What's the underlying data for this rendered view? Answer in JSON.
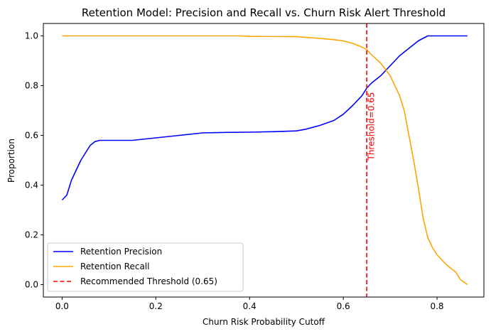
{
  "chart_data": {
    "type": "line",
    "title": "Retention Model: Precision and Recall vs. Churn Risk Alert Threshold",
    "xlabel": "Churn Risk Probability Cutoff",
    "ylabel": "Proportion",
    "xlim": [
      -0.04,
      0.9
    ],
    "ylim": [
      -0.05,
      1.05
    ],
    "xticks": [
      "0.0",
      "0.2",
      "0.4",
      "0.6",
      "0.8"
    ],
    "xtick_values": [
      0.0,
      0.2,
      0.4,
      0.6,
      0.8
    ],
    "yticks": [
      "0.0",
      "0.2",
      "0.4",
      "0.6",
      "0.8",
      "1.0"
    ],
    "ytick_values": [
      0.0,
      0.2,
      0.4,
      0.6,
      0.8,
      1.0
    ],
    "grid": false,
    "legend_position": "lower-left",
    "series": [
      {
        "name": "Retention Precision",
        "color": "#0000ff",
        "style": "solid",
        "x": [
          0.0,
          0.01,
          0.02,
          0.03,
          0.04,
          0.05,
          0.06,
          0.07,
          0.08,
          0.1,
          0.15,
          0.2,
          0.25,
          0.3,
          0.35,
          0.4,
          0.45,
          0.5,
          0.52,
          0.55,
          0.58,
          0.6,
          0.62,
          0.64,
          0.65,
          0.66,
          0.68,
          0.7,
          0.72,
          0.74,
          0.76,
          0.77,
          0.78,
          0.8,
          0.82,
          0.84,
          0.865
        ],
        "y": [
          0.34,
          0.36,
          0.42,
          0.46,
          0.5,
          0.53,
          0.56,
          0.575,
          0.58,
          0.58,
          0.58,
          0.59,
          0.6,
          0.61,
          0.612,
          0.613,
          0.615,
          0.618,
          0.625,
          0.64,
          0.66,
          0.685,
          0.72,
          0.76,
          0.79,
          0.81,
          0.84,
          0.88,
          0.92,
          0.95,
          0.98,
          0.99,
          1.0,
          1.0,
          1.0,
          1.0,
          1.0
        ]
      },
      {
        "name": "Retention Recall",
        "color": "#ffa500",
        "style": "solid",
        "x": [
          0.0,
          0.1,
          0.2,
          0.3,
          0.38,
          0.4,
          0.5,
          0.55,
          0.58,
          0.6,
          0.62,
          0.64,
          0.65,
          0.66,
          0.68,
          0.7,
          0.72,
          0.73,
          0.74,
          0.75,
          0.76,
          0.77,
          0.78,
          0.79,
          0.8,
          0.82,
          0.84,
          0.85,
          0.865
        ],
        "y": [
          1.0,
          1.0,
          1.0,
          1.0,
          1.0,
          0.998,
          0.997,
          0.99,
          0.985,
          0.98,
          0.97,
          0.955,
          0.945,
          0.925,
          0.89,
          0.84,
          0.76,
          0.7,
          0.6,
          0.5,
          0.39,
          0.27,
          0.19,
          0.15,
          0.12,
          0.08,
          0.05,
          0.02,
          0.0
        ]
      },
      {
        "name": "Recommended Threshold (0.65)",
        "color": "#ff0000",
        "style": "dashed",
        "vline_x": 0.65
      }
    ],
    "annotations": [
      {
        "text": "Threshold=0.65",
        "x": 0.66,
        "y": 0.5,
        "color": "#ff0000",
        "rotation": 90
      }
    ]
  }
}
